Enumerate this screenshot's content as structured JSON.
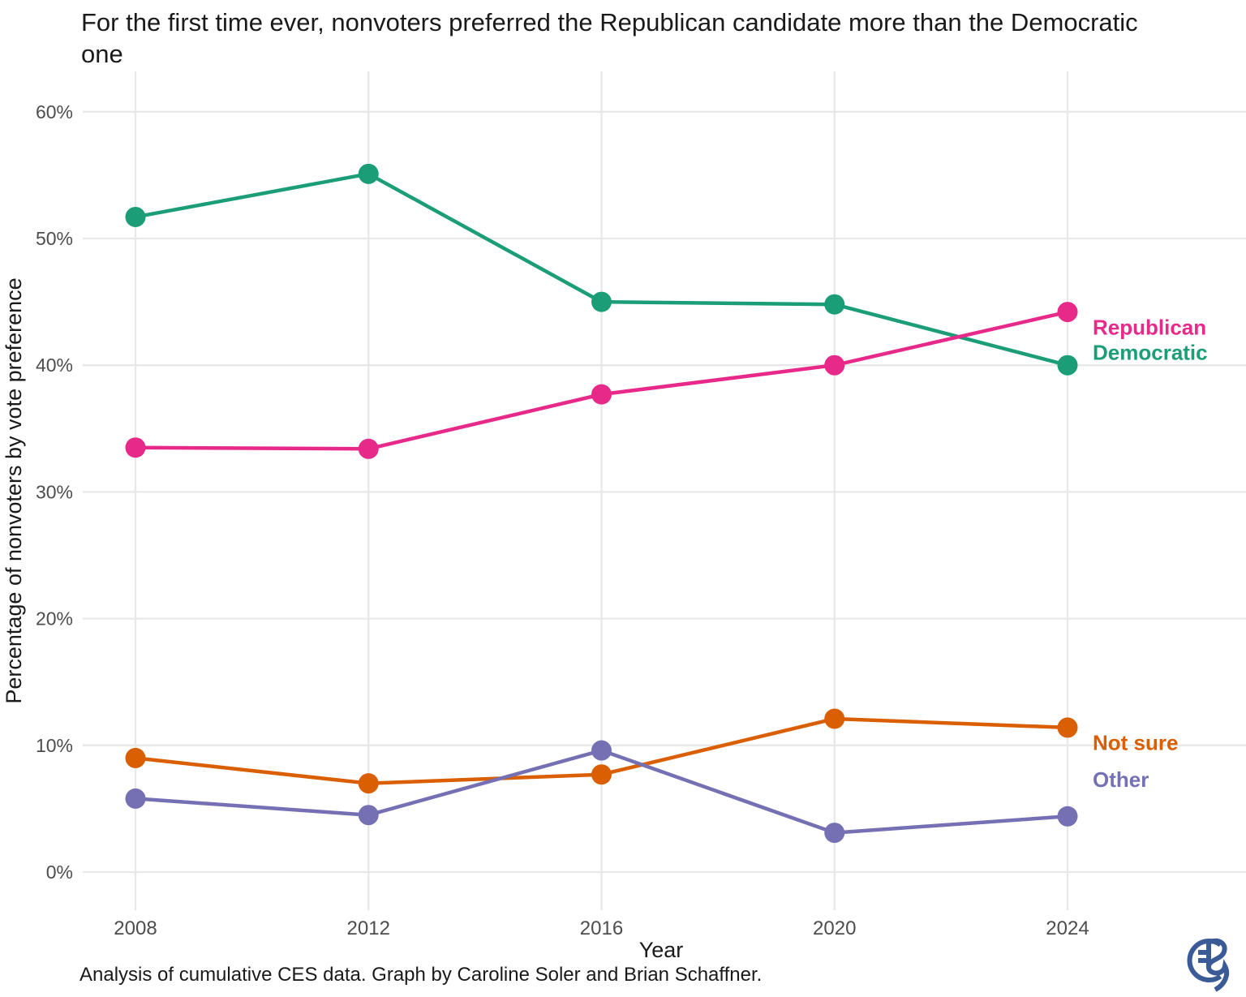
{
  "title": "For the first time ever, nonvoters preferred the Republican candidate more than the Democratic one",
  "caption": "Analysis of cumulative CES data. Graph by Caroline Soler and Brian Schaffner.",
  "logo": {
    "name": "CES logo",
    "color": "#3b5b97"
  },
  "chart_data": {
    "type": "line",
    "title": "For the first time ever, nonvoters preferred the Republican candidate more than the Democratic one",
    "xlabel": "Year",
    "ylabel": "Percentage of nonvoters by vote preference",
    "x": [
      2008,
      2012,
      2016,
      2020,
      2024
    ],
    "x_tick_labels": [
      "2008",
      "2012",
      "2016",
      "2020",
      "2024"
    ],
    "y_ticks": [
      0,
      10,
      20,
      30,
      40,
      50,
      60
    ],
    "y_tick_labels": [
      "0%",
      "10%",
      "20%",
      "30%",
      "40%",
      "50%",
      "60%"
    ],
    "ylim": [
      0,
      63
    ],
    "grid": true,
    "legend_position": "inline-right",
    "series": [
      {
        "name": "Democratic",
        "label": "Democratic",
        "color": "#1b9e77",
        "values": [
          51.7,
          55.1,
          45.0,
          44.8,
          40.0
        ],
        "label_y": 41.0
      },
      {
        "name": "Republican",
        "label": "Republican",
        "color": "#e7298a",
        "values": [
          33.5,
          33.4,
          37.7,
          40.0,
          44.2
        ],
        "label_y": 43.0
      },
      {
        "name": "Not sure",
        "label": "Not sure",
        "color": "#d95f02",
        "values": [
          9.0,
          7.0,
          7.7,
          12.1,
          11.4
        ],
        "label_y": 10.2
      },
      {
        "name": "Other",
        "label": "Other",
        "color": "#7570b3",
        "values": [
          5.8,
          4.5,
          9.6,
          3.1,
          4.4
        ],
        "label_y": 7.3
      }
    ],
    "colors": {
      "grid": "#e8e8e8",
      "tick_text": "#4d4d4d",
      "axis_title_text": "#1a1a1a"
    }
  }
}
